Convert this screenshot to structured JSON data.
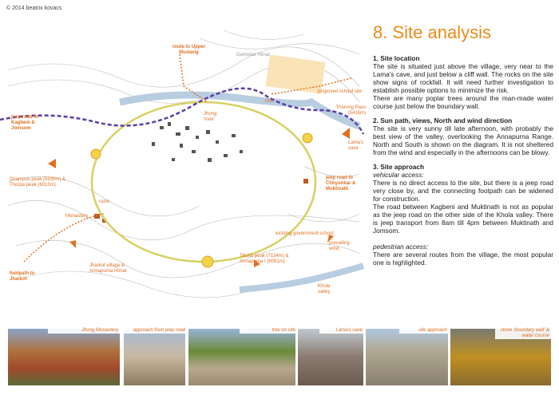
{
  "copyright": "© 2014 beatrix kovacs",
  "title": "8. Site analysis",
  "map_labels": [
    "route to Upper Mustang",
    "Damodar Himal",
    "proposed school site",
    "tree",
    "Jhong 'river'",
    "Thorong Pass (5416m)",
    "jeep road to Kagbeni & Jomsom",
    "Lama's cave",
    "Dhampus peak (5930m) & Thorpa peak (6013m)",
    "ruins",
    "jeep road to Chhyonkar & Muktinath",
    "Monastery",
    "existing government school",
    "prevailing wind",
    "Tilicho peak (7134m) & Annapurna I (8091m)",
    "Jharkot village & Annapurna Himal",
    "footpath to Jharkot",
    "Khola valley"
  ],
  "sections": [
    {
      "heading": "1. Site location",
      "paragraphs": [
        "The site is situated just above the village, very near to the Lama's cave, and just below a cliff wall. The rocks on the site show signs of rockfall. It will need further investigation to establish possible options to minimize the risk.",
        "There are many poplar trees around the man-made water course just below the boundary wall."
      ]
    },
    {
      "heading": "2. Sun path, views, North and wind direction",
      "paragraphs": [
        "The site is very sunny till late afternoon, with probably the best view of the valley, overlooking the Annapurna Range. North and South is shown on the diagram. It is not sheltered from the wind and especially in the afternoons can be blowy."
      ]
    },
    {
      "heading": "3. Site approach",
      "subsections": [
        {
          "subheading": "vehicular access:",
          "paragraphs": [
            "There is no direct access to the site, but there is a jeep road very close by, and the connecting footpath can be widened for construction.",
            "The road between Kagbeni and Muktinath is not as popular as the jeep road on the other side of the Khola valley. There is jeep transport from 8am till 4pm between Muktinath and Jomsom."
          ]
        },
        {
          "subheading": "pedestrian access:",
          "paragraphs": [
            "There are several routes from the village, the most popular one is highlighted."
          ]
        }
      ]
    }
  ],
  "photos": [
    "Jhong Monastery",
    "approach from jeep road",
    "tree on site",
    "Lama's cave",
    "site approach",
    "stone 'boundary wall' & water course"
  ]
}
